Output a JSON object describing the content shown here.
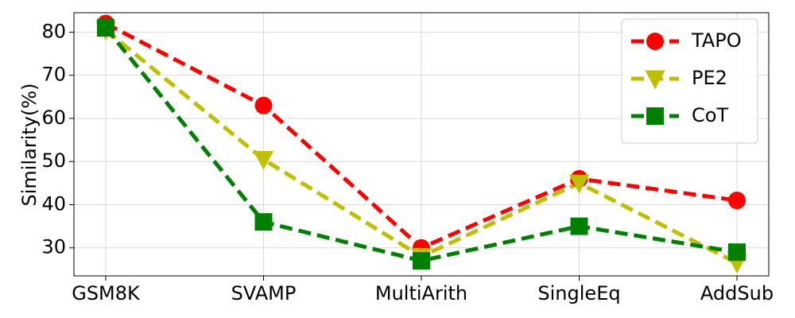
{
  "chart_data": {
    "type": "line",
    "categories": [
      "GSM8K",
      "SVAMP",
      "MultiArith",
      "SingleEq",
      "AddSub"
    ],
    "ylabel": "Similarity(%)",
    "xlabel": "",
    "ylim": [
      23.5,
      84.5
    ],
    "yticks": [
      30,
      40,
      50,
      60,
      70,
      80
    ],
    "grid": true,
    "legend_position": "top-right",
    "series": [
      {
        "name": "TAPO",
        "values": [
          82,
          63,
          30,
          46,
          41
        ],
        "color": "#ff0000",
        "marker": "circle"
      },
      {
        "name": "PE2",
        "values": [
          80.5,
          50.5,
          28,
          45,
          26.5
        ],
        "color": "#bfbf00",
        "marker": "triangle-down"
      },
      {
        "name": "CoT",
        "values": [
          81,
          36,
          27,
          35,
          29
        ],
        "color": "#008000",
        "marker": "square"
      }
    ]
  }
}
